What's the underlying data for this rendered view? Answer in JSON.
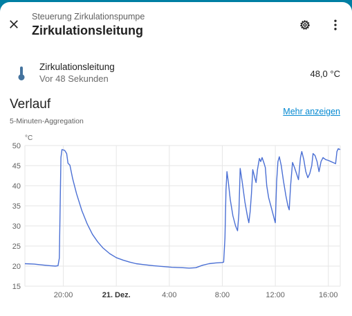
{
  "header": {
    "subtitle": "Steuerung Zirkulationspumpe",
    "title": "Zirkulationsleitung",
    "close_icon": "close-icon",
    "settings_icon": "gear-icon",
    "menu_icon": "more-vertical-icon"
  },
  "entity": {
    "icon": "thermometer-icon",
    "name": "Zirkulationsleitung",
    "last_changed": "Vor 48 Sekunden",
    "state": "48,0 °C"
  },
  "history": {
    "title": "Verlauf",
    "subtitle": "5-Minuten-Aggregation",
    "more_link": "Mehr anzeigen"
  },
  "colors": {
    "accent": "#0288d1",
    "line": "#4a6fd4",
    "background_edge": "#007fa3"
  },
  "chart_data": {
    "type": "line",
    "ylabel": "°C",
    "ylim": [
      15,
      50
    ],
    "yticks": [
      15,
      20,
      25,
      30,
      35,
      40,
      45,
      50
    ],
    "xlim": [
      17.1,
      40.9
    ],
    "xticks": [
      {
        "x": 20,
        "label": "20:00",
        "bold": false
      },
      {
        "x": 24,
        "label": "21. Dez.",
        "bold": true
      },
      {
        "x": 28,
        "label": "4:00",
        "bold": false
      },
      {
        "x": 32,
        "label": "8:00",
        "bold": false
      },
      {
        "x": 36,
        "label": "12:00",
        "bold": false
      },
      {
        "x": 40,
        "label": "16:00",
        "bold": false
      }
    ],
    "grid": true,
    "series": [
      {
        "points": [
          [
            17.1,
            20.6
          ],
          [
            17.8,
            20.5
          ],
          [
            18.4,
            20.3
          ],
          [
            19.0,
            20.1
          ],
          [
            19.4,
            20.0
          ],
          [
            19.6,
            20.1
          ],
          [
            19.7,
            22.0
          ],
          [
            19.82,
            47.0
          ],
          [
            19.9,
            49.0
          ],
          [
            20.1,
            48.8
          ],
          [
            20.25,
            48.0
          ],
          [
            20.35,
            45.6
          ],
          [
            20.5,
            45.1
          ],
          [
            20.7,
            41.8
          ],
          [
            21.0,
            38.0
          ],
          [
            21.4,
            33.8
          ],
          [
            21.8,
            30.5
          ],
          [
            22.2,
            27.9
          ],
          [
            22.6,
            26.0
          ],
          [
            23.0,
            24.5
          ],
          [
            23.5,
            23.1
          ],
          [
            24.0,
            22.1
          ],
          [
            24.5,
            21.5
          ],
          [
            25.0,
            21.0
          ],
          [
            25.5,
            20.6
          ],
          [
            26.0,
            20.4
          ],
          [
            26.8,
            20.1
          ],
          [
            27.5,
            19.9
          ],
          [
            28.2,
            19.7
          ],
          [
            29.0,
            19.6
          ],
          [
            29.5,
            19.5
          ],
          [
            30.0,
            19.6
          ],
          [
            30.5,
            20.2
          ],
          [
            31.0,
            20.6
          ],
          [
            31.5,
            20.8
          ],
          [
            32.0,
            20.9
          ],
          [
            32.1,
            21.0
          ],
          [
            32.2,
            27.0
          ],
          [
            32.28,
            39.0
          ],
          [
            32.35,
            43.5
          ],
          [
            32.45,
            41.0
          ],
          [
            32.6,
            36.5
          ],
          [
            32.8,
            32.5
          ],
          [
            33.0,
            30.0
          ],
          [
            33.15,
            28.8
          ],
          [
            33.25,
            33.0
          ],
          [
            33.35,
            44.3
          ],
          [
            33.5,
            41.0
          ],
          [
            33.7,
            36.0
          ],
          [
            33.9,
            32.3
          ],
          [
            34.0,
            30.8
          ],
          [
            34.1,
            33.5
          ],
          [
            34.2,
            38.0
          ],
          [
            34.3,
            44.0
          ],
          [
            34.45,
            42.0
          ],
          [
            34.55,
            40.8
          ],
          [
            34.65,
            44.0
          ],
          [
            34.8,
            46.8
          ],
          [
            34.9,
            46.0
          ],
          [
            35.0,
            47.0
          ],
          [
            35.15,
            45.6
          ],
          [
            35.25,
            44.5
          ],
          [
            35.35,
            40.0
          ],
          [
            35.5,
            37.0
          ],
          [
            35.7,
            34.5
          ],
          [
            35.9,
            32.0
          ],
          [
            36.0,
            30.8
          ],
          [
            36.1,
            41.0
          ],
          [
            36.2,
            46.0
          ],
          [
            36.3,
            47.2
          ],
          [
            36.45,
            45.0
          ],
          [
            36.6,
            41.5
          ],
          [
            36.8,
            37.5
          ],
          [
            36.95,
            35.0
          ],
          [
            37.05,
            34.0
          ],
          [
            37.15,
            40.0
          ],
          [
            37.3,
            45.8
          ],
          [
            37.45,
            44.5
          ],
          [
            37.6,
            43.0
          ],
          [
            37.75,
            41.5
          ],
          [
            37.9,
            47.0
          ],
          [
            38.0,
            48.5
          ],
          [
            38.15,
            46.5
          ],
          [
            38.3,
            43.5
          ],
          [
            38.45,
            42.0
          ],
          [
            38.6,
            43.0
          ],
          [
            38.75,
            45.0
          ],
          [
            38.85,
            48.0
          ],
          [
            39.0,
            47.5
          ],
          [
            39.15,
            46.0
          ],
          [
            39.3,
            43.5
          ],
          [
            39.45,
            46.0
          ],
          [
            39.6,
            47.0
          ],
          [
            39.8,
            46.5
          ],
          [
            40.0,
            46.3
          ],
          [
            40.2,
            46.0
          ],
          [
            40.4,
            45.7
          ],
          [
            40.55,
            45.5
          ],
          [
            40.65,
            48.5
          ],
          [
            40.75,
            49.2
          ],
          [
            40.9,
            49.0
          ]
        ]
      }
    ]
  }
}
